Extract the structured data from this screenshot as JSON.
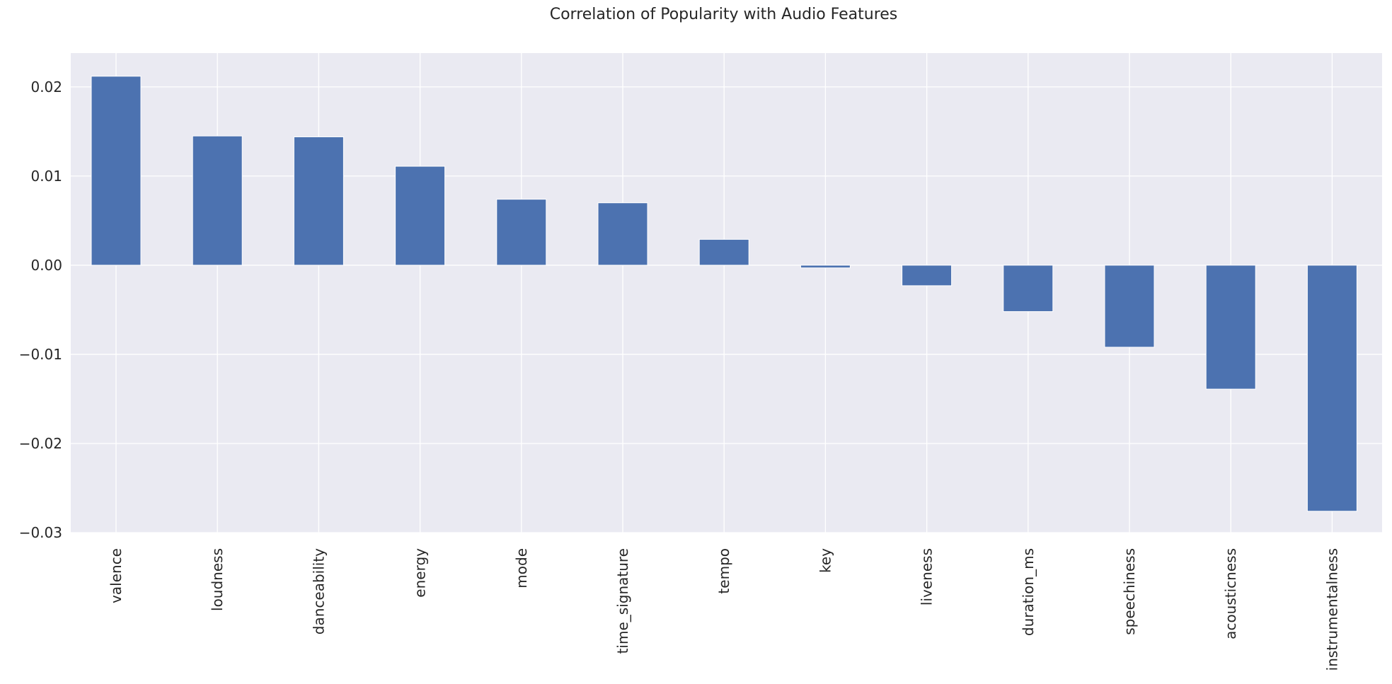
{
  "chart_data": {
    "type": "bar",
    "title": "Correlation of Popularity with Audio Features",
    "xlabel": "",
    "ylabel": "",
    "categories": [
      "valence",
      "loudness",
      "danceability",
      "energy",
      "mode",
      "time_signature",
      "tempo",
      "key",
      "liveness",
      "duration_ms",
      "speechiness",
      "acousticness",
      "instrumentalness"
    ],
    "values": [
      0.0212,
      0.0145,
      0.0144,
      0.0111,
      0.0074,
      0.007,
      0.0029,
      -0.0003,
      -0.0023,
      -0.0052,
      -0.0092,
      -0.0139,
      -0.0276
    ],
    "ylim": [
      -0.03,
      0.0238
    ],
    "yticks": [
      0.02,
      0.01,
      0.0,
      -0.01,
      -0.02,
      -0.03
    ],
    "ytick_labels": [
      "0.02",
      "0.01",
      "0.00",
      "−0.01",
      "−0.02",
      "−0.03"
    ],
    "grid": true,
    "legend": "none",
    "colors": {
      "bar": "#4c72b0",
      "plot_background": "#eaeaf2",
      "grid": "#ffffff",
      "text": "#262626"
    }
  }
}
